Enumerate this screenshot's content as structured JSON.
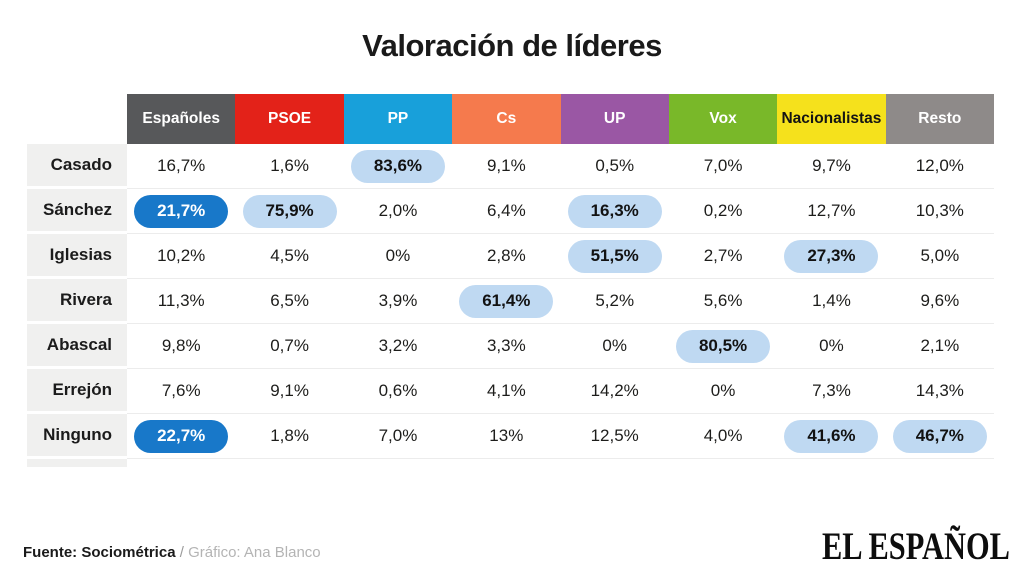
{
  "title": "Valoración de líderes",
  "table": {
    "columns": [
      {
        "label": "Españoles",
        "bg": "#57585a",
        "text": "#ffffff"
      },
      {
        "label": "PSOE",
        "bg": "#e32219",
        "text": "#ffffff"
      },
      {
        "label": "PP",
        "bg": "#18a0da",
        "text": "#ffffff"
      },
      {
        "label": "Cs",
        "bg": "#f57a4d",
        "text": "#ffffff"
      },
      {
        "label": "UP",
        "bg": "#9a57a4",
        "text": "#ffffff"
      },
      {
        "label": "Vox",
        "bg": "#79b829",
        "text": "#ffffff"
      },
      {
        "label": "Nacionalistas",
        "bg": "#f5e11c",
        "text": "#141414"
      },
      {
        "label": "Resto",
        "bg": "#8e8a89",
        "text": "#ffffff"
      }
    ],
    "highlight": {
      "light": {
        "bg": "#bfd9f2",
        "text": "#121212"
      },
      "dark": {
        "bg": "#1878c9",
        "text": "#ffffff"
      }
    },
    "rows": [
      {
        "label": "Casado",
        "values": [
          {
            "v": "16,7%"
          },
          {
            "v": "1,6%"
          },
          {
            "v": "83,6%",
            "hl": "light"
          },
          {
            "v": "9,1%"
          },
          {
            "v": "0,5%"
          },
          {
            "v": "7,0%"
          },
          {
            "v": "9,7%"
          },
          {
            "v": "12,0%"
          }
        ]
      },
      {
        "label": "Sánchez",
        "values": [
          {
            "v": "21,7%",
            "hl": "dark"
          },
          {
            "v": "75,9%",
            "hl": "light"
          },
          {
            "v": "2,0%"
          },
          {
            "v": "6,4%"
          },
          {
            "v": "16,3%",
            "hl": "light"
          },
          {
            "v": "0,2%"
          },
          {
            "v": "12,7%"
          },
          {
            "v": "10,3%"
          }
        ]
      },
      {
        "label": "Iglesias",
        "values": [
          {
            "v": "10,2%"
          },
          {
            "v": "4,5%"
          },
          {
            "v": "0%"
          },
          {
            "v": "2,8%"
          },
          {
            "v": "51,5%",
            "hl": "light"
          },
          {
            "v": "2,7%"
          },
          {
            "v": "27,3%",
            "hl": "light"
          },
          {
            "v": "5,0%"
          }
        ]
      },
      {
        "label": "Rivera",
        "values": [
          {
            "v": "11,3%"
          },
          {
            "v": "6,5%"
          },
          {
            "v": "3,9%"
          },
          {
            "v": "61,4%",
            "hl": "light"
          },
          {
            "v": "5,2%"
          },
          {
            "v": "5,6%"
          },
          {
            "v": "1,4%"
          },
          {
            "v": "9,6%"
          }
        ]
      },
      {
        "label": "Abascal",
        "values": [
          {
            "v": "9,8%"
          },
          {
            "v": "0,7%"
          },
          {
            "v": "3,2%"
          },
          {
            "v": "3,3%"
          },
          {
            "v": "0%"
          },
          {
            "v": "80,5%",
            "hl": "light"
          },
          {
            "v": "0%"
          },
          {
            "v": "2,1%"
          }
        ]
      },
      {
        "label": "Errejón",
        "values": [
          {
            "v": "7,6%"
          },
          {
            "v": "9,1%"
          },
          {
            "v": "0,6%"
          },
          {
            "v": "4,1%"
          },
          {
            "v": "14,2%"
          },
          {
            "v": "0%"
          },
          {
            "v": "7,3%"
          },
          {
            "v": "14,3%"
          }
        ]
      },
      {
        "label": "Ninguno",
        "values": [
          {
            "v": "22,7%",
            "hl": "dark"
          },
          {
            "v": "1,8%"
          },
          {
            "v": "7,0%"
          },
          {
            "v": "13%"
          },
          {
            "v": "12,5%"
          },
          {
            "v": "4,0%"
          },
          {
            "v": "41,6%",
            "hl": "light"
          },
          {
            "v": "46,7%",
            "hl": "light"
          }
        ]
      }
    ]
  },
  "footer": {
    "source": "Fuente: Sociométrica",
    "separator": "/",
    "credit": "Gráfico: Ana Blanco",
    "logo": "EL ESPAÑOL"
  },
  "chart_data": {
    "type": "table",
    "title": "Valoración de líderes",
    "units": "%",
    "categories": [
      "Españoles",
      "PSOE",
      "PP",
      "Cs",
      "UP",
      "Vox",
      "Nacionalistas",
      "Resto"
    ],
    "series": [
      {
        "name": "Casado",
        "values": [
          16.7,
          1.6,
          83.6,
          9.1,
          0.5,
          7.0,
          9.7,
          12.0
        ]
      },
      {
        "name": "Sánchez",
        "values": [
          21.7,
          75.9,
          2.0,
          6.4,
          16.3,
          0.2,
          12.7,
          10.3
        ]
      },
      {
        "name": "Iglesias",
        "values": [
          10.2,
          4.5,
          0,
          2.8,
          51.5,
          2.7,
          27.3,
          5.0
        ]
      },
      {
        "name": "Rivera",
        "values": [
          11.3,
          6.5,
          3.9,
          61.4,
          5.2,
          5.6,
          1.4,
          9.6
        ]
      },
      {
        "name": "Abascal",
        "values": [
          9.8,
          0.7,
          3.2,
          3.3,
          0,
          80.5,
          0,
          2.1
        ]
      },
      {
        "name": "Errejón",
        "values": [
          7.6,
          9.1,
          0.6,
          4.1,
          14.2,
          0,
          7.3,
          14.3
        ]
      },
      {
        "name": "Ninguno",
        "values": [
          22.7,
          1.8,
          7.0,
          13,
          12.5,
          4.0,
          41.6,
          46.7
        ]
      }
    ],
    "highlighted_cells": [
      {
        "row": "Casado",
        "column": "PP",
        "style": "light"
      },
      {
        "row": "Sánchez",
        "column": "Españoles",
        "style": "dark"
      },
      {
        "row": "Sánchez",
        "column": "PSOE",
        "style": "light"
      },
      {
        "row": "Sánchez",
        "column": "UP",
        "style": "light"
      },
      {
        "row": "Iglesias",
        "column": "UP",
        "style": "light"
      },
      {
        "row": "Iglesias",
        "column": "Nacionalistas",
        "style": "light"
      },
      {
        "row": "Rivera",
        "column": "Cs",
        "style": "light"
      },
      {
        "row": "Abascal",
        "column": "Vox",
        "style": "light"
      },
      {
        "row": "Ninguno",
        "column": "Españoles",
        "style": "dark"
      },
      {
        "row": "Ninguno",
        "column": "Nacionalistas",
        "style": "light"
      },
      {
        "row": "Ninguno",
        "column": "Resto",
        "style": "light"
      }
    ],
    "legend_position": "none",
    "grid": false
  }
}
